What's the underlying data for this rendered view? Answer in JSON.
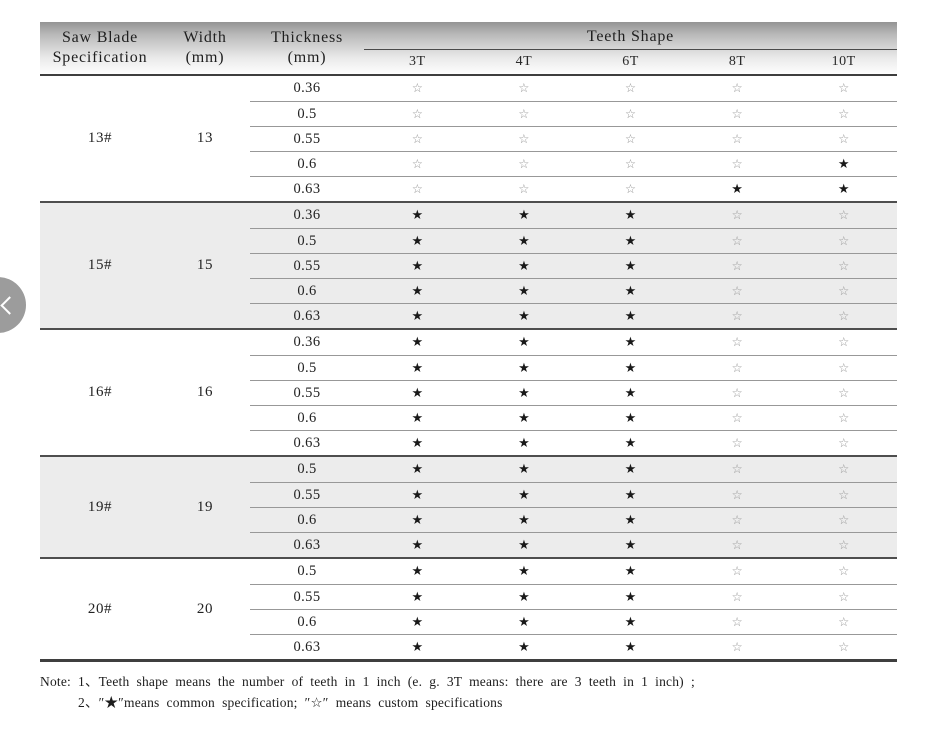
{
  "table": {
    "header": {
      "spec": "Saw Blade\nSpecification",
      "width": "Width\n(mm)",
      "thickness": "Thickness\n(mm)",
      "teeth_shape": "Teeth Shape",
      "teeth_cols": [
        "3T",
        "4T",
        "6T",
        "8T",
        "10T"
      ]
    },
    "legend": {
      "common": "★",
      "custom": "☆"
    },
    "groups": [
      {
        "spec": "13#",
        "width": "13",
        "rows": [
          {
            "thickness": "0.36",
            "teeth": [
              "☆",
              "☆",
              "☆",
              "☆",
              "☆"
            ]
          },
          {
            "thickness": "0.5",
            "teeth": [
              "☆",
              "☆",
              "☆",
              "☆",
              "☆"
            ]
          },
          {
            "thickness": "0.55",
            "teeth": [
              "☆",
              "☆",
              "☆",
              "☆",
              "☆"
            ]
          },
          {
            "thickness": "0.6",
            "teeth": [
              "☆",
              "☆",
              "☆",
              "☆",
              "★"
            ]
          },
          {
            "thickness": "0.63",
            "teeth": [
              "☆",
              "☆",
              "☆",
              "★",
              "★"
            ]
          }
        ]
      },
      {
        "spec": "15#",
        "width": "15",
        "rows": [
          {
            "thickness": "0.36",
            "teeth": [
              "★",
              "★",
              "★",
              "☆",
              "☆"
            ]
          },
          {
            "thickness": "0.5",
            "teeth": [
              "★",
              "★",
              "★",
              "☆",
              "☆"
            ]
          },
          {
            "thickness": "0.55",
            "teeth": [
              "★",
              "★",
              "★",
              "☆",
              "☆"
            ]
          },
          {
            "thickness": "0.6",
            "teeth": [
              "★",
              "★",
              "★",
              "☆",
              "☆"
            ]
          },
          {
            "thickness": "0.63",
            "teeth": [
              "★",
              "★",
              "★",
              "☆",
              "☆"
            ]
          }
        ]
      },
      {
        "spec": "16#",
        "width": "16",
        "rows": [
          {
            "thickness": "0.36",
            "teeth": [
              "★",
              "★",
              "★",
              "☆",
              "☆"
            ]
          },
          {
            "thickness": "0.5",
            "teeth": [
              "★",
              "★",
              "★",
              "☆",
              "☆"
            ]
          },
          {
            "thickness": "0.55",
            "teeth": [
              "★",
              "★",
              "★",
              "☆",
              "☆"
            ]
          },
          {
            "thickness": "0.6",
            "teeth": [
              "★",
              "★",
              "★",
              "☆",
              "☆"
            ]
          },
          {
            "thickness": "0.63",
            "teeth": [
              "★",
              "★",
              "★",
              "☆",
              "☆"
            ]
          }
        ]
      },
      {
        "spec": "19#",
        "width": "19",
        "rows": [
          {
            "thickness": "0.5",
            "teeth": [
              "★",
              "★",
              "★",
              "☆",
              "☆"
            ]
          },
          {
            "thickness": "0.55",
            "teeth": [
              "★",
              "★",
              "★",
              "☆",
              "☆"
            ]
          },
          {
            "thickness": "0.6",
            "teeth": [
              "★",
              "★",
              "★",
              "☆",
              "☆"
            ]
          },
          {
            "thickness": "0.63",
            "teeth": [
              "★",
              "★",
              "★",
              "☆",
              "☆"
            ]
          }
        ]
      },
      {
        "spec": "20#",
        "width": "20",
        "rows": [
          {
            "thickness": "0.5",
            "teeth": [
              "★",
              "★",
              "★",
              "☆",
              "☆"
            ]
          },
          {
            "thickness": "0.55",
            "teeth": [
              "★",
              "★",
              "★",
              "☆",
              "☆"
            ]
          },
          {
            "thickness": "0.6",
            "teeth": [
              "★",
              "★",
              "★",
              "☆",
              "☆"
            ]
          },
          {
            "thickness": "0.63",
            "teeth": [
              "★",
              "★",
              "★",
              "☆",
              "☆"
            ]
          }
        ]
      }
    ],
    "note": {
      "label": "Note:",
      "line1": "1、Teeth shape means the number of teeth in 1 inch (e. g.  3T   means:  there are 3 teeth in 1 inch) ;",
      "line2": "2、″★″means common specification;  ″☆″ means custom specifications"
    }
  }
}
